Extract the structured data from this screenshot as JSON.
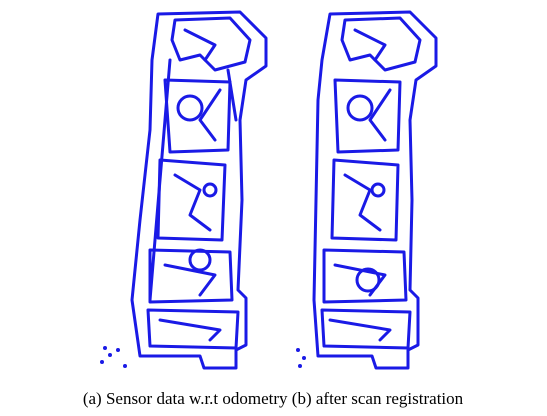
{
  "figure": {
    "caption": "(a) Sensor data w.r.t odometry (b) after scan registration"
  }
}
